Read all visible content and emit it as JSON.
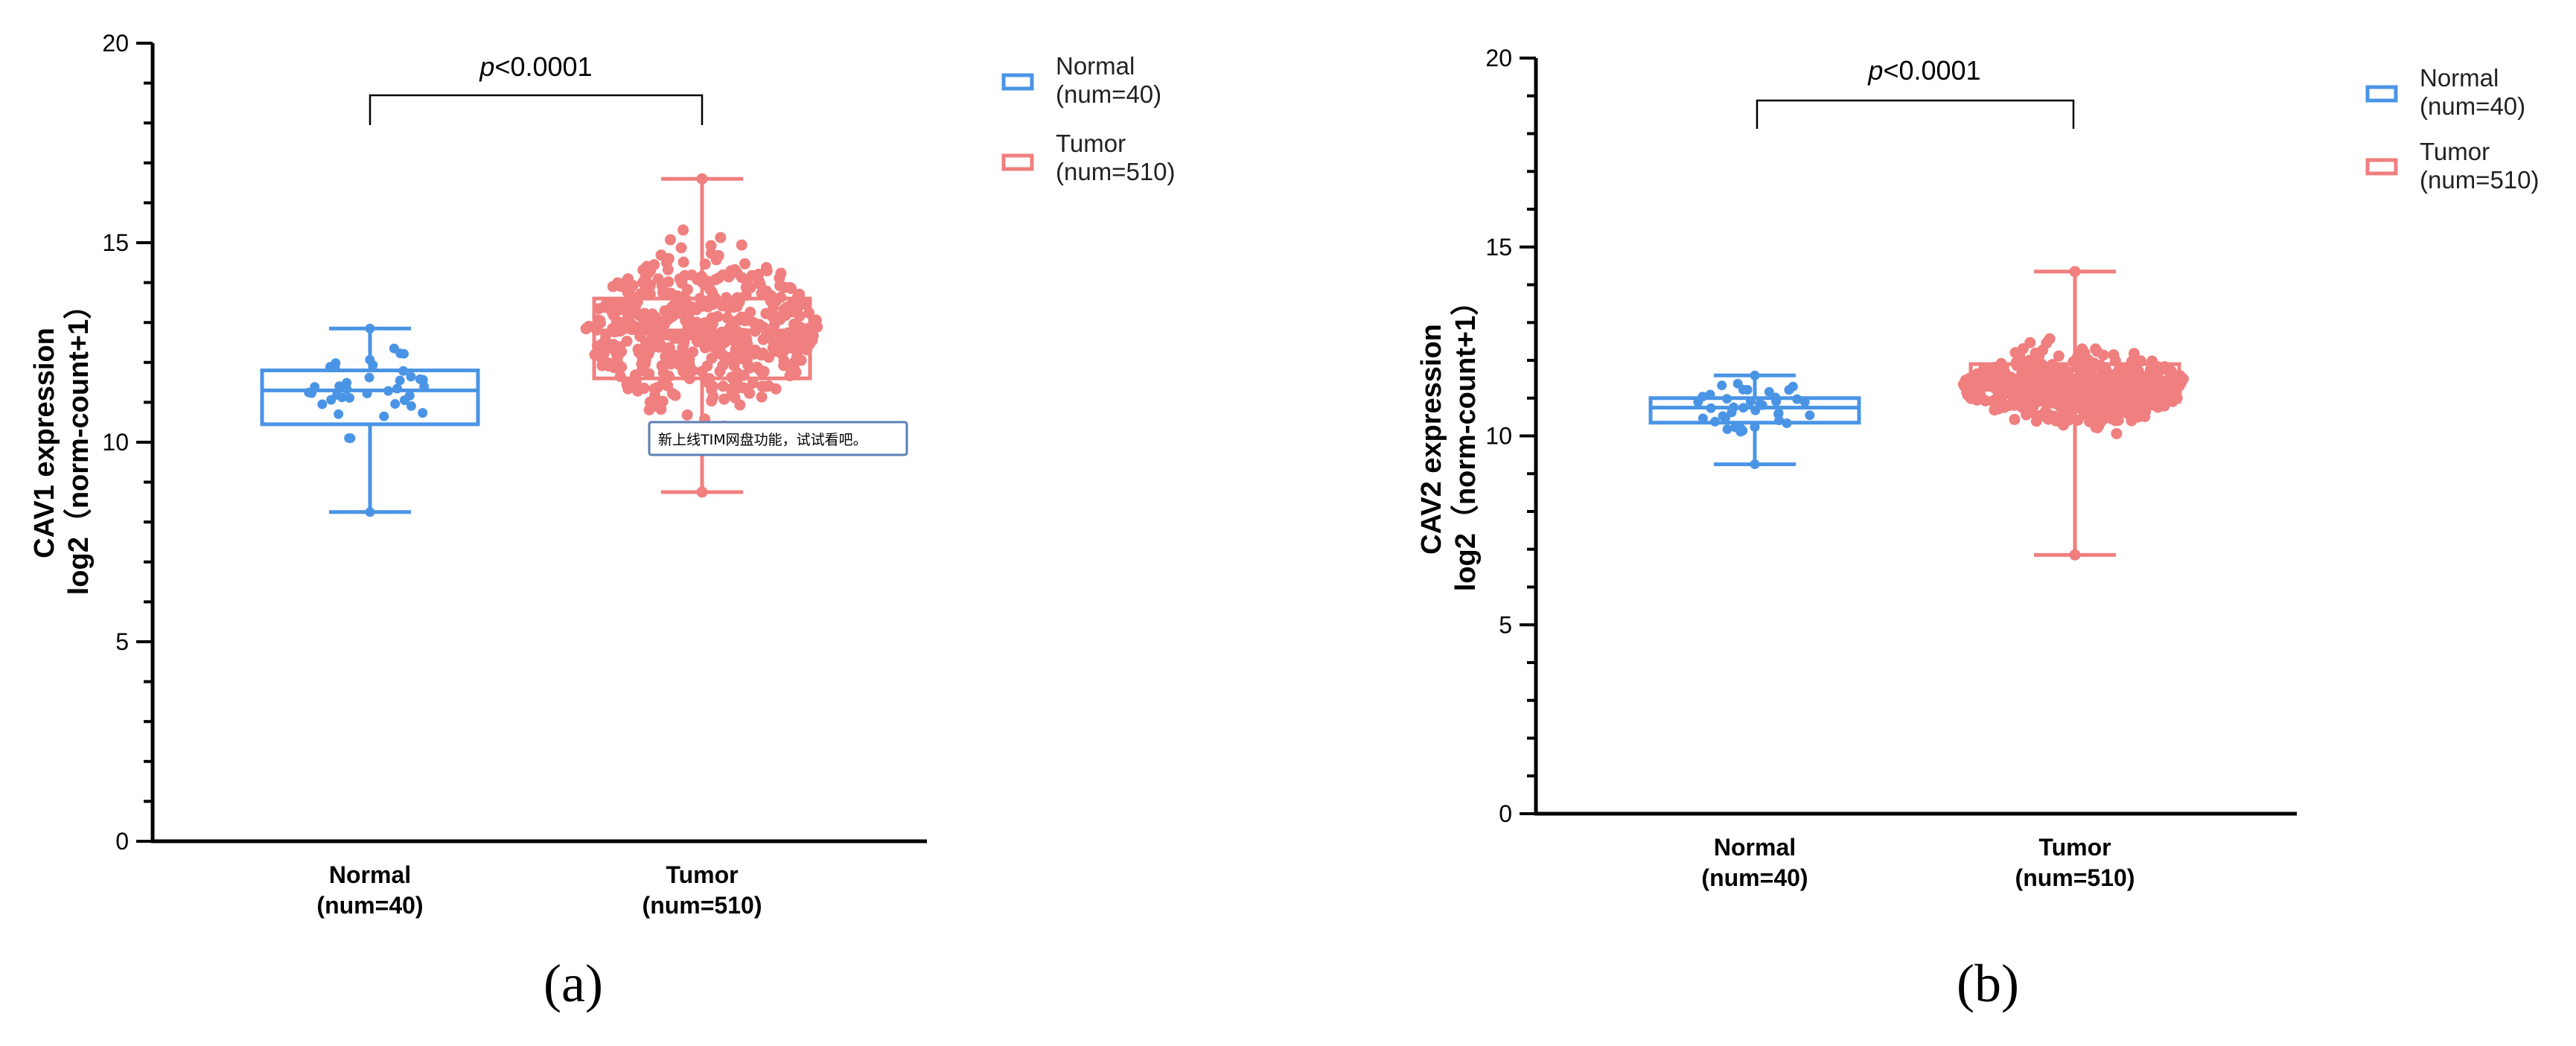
{
  "chart_data": [
    {
      "type": "box-swarm",
      "panel_label": "(a)",
      "ylabel_line1": "CAV1 expression",
      "ylabel_line2": "log2（norm-count+1）",
      "ylim": [
        0,
        20
      ],
      "yticks": [
        0,
        5,
        10,
        15,
        20
      ],
      "significance": {
        "italic": "p",
        "rest": "<0.0001"
      },
      "groups": [
        {
          "name": "Normal",
          "n_label": "(num=40)",
          "n": 40,
          "color": "#4a94e6",
          "min": 8.25,
          "q1": 10.45,
          "median": 11.3,
          "q3": 11.8,
          "max": 12.85,
          "spread": [
            10.1,
            12.6
          ]
        },
        {
          "name": "Tumor",
          "n_label": "(num=510)",
          "n": 510,
          "color": "#f07f7f",
          "min": 8.75,
          "q1": 11.6,
          "median": 12.8,
          "q3": 13.6,
          "max": 16.6,
          "spread": [
            9.0,
            15.8
          ]
        }
      ],
      "legend": [
        {
          "name": "Normal",
          "n_label": "(num=40)",
          "color": "#4a94e6"
        },
        {
          "name": "Tumor",
          "n_label": "(num=510)",
          "color": "#f07f7f"
        }
      ],
      "tooltip": "新上线TIM网盘功能，试试看吧。"
    },
    {
      "type": "box-swarm",
      "panel_label": "(b)",
      "ylabel_line1": "CAV2 expression",
      "ylabel_line2": "log2（norm-count+1）",
      "ylim": [
        0,
        20
      ],
      "yticks": [
        0,
        5,
        10,
        15,
        20
      ],
      "significance": {
        "italic": "p",
        "rest": "<0.0001"
      },
      "groups": [
        {
          "name": "Normal",
          "n_label": "(num=40)",
          "n": 40,
          "color": "#4a94e6",
          "min": 9.25,
          "q1": 10.35,
          "median": 10.75,
          "q3": 11.0,
          "max": 11.6,
          "spread": [
            9.9,
            11.4
          ]
        },
        {
          "name": "Tumor",
          "n_label": "(num=510)",
          "n": 510,
          "color": "#f07f7f",
          "min": 6.85,
          "q1": 10.9,
          "median": 11.3,
          "q3": 11.9,
          "max": 14.35,
          "spread": [
            8.3,
            13.2
          ]
        }
      ],
      "legend": [
        {
          "name": "Normal",
          "n_label": "(num=40)",
          "color": "#4a94e6"
        },
        {
          "name": "Tumor",
          "n_label": "(num=510)",
          "color": "#f07f7f"
        }
      ]
    }
  ]
}
